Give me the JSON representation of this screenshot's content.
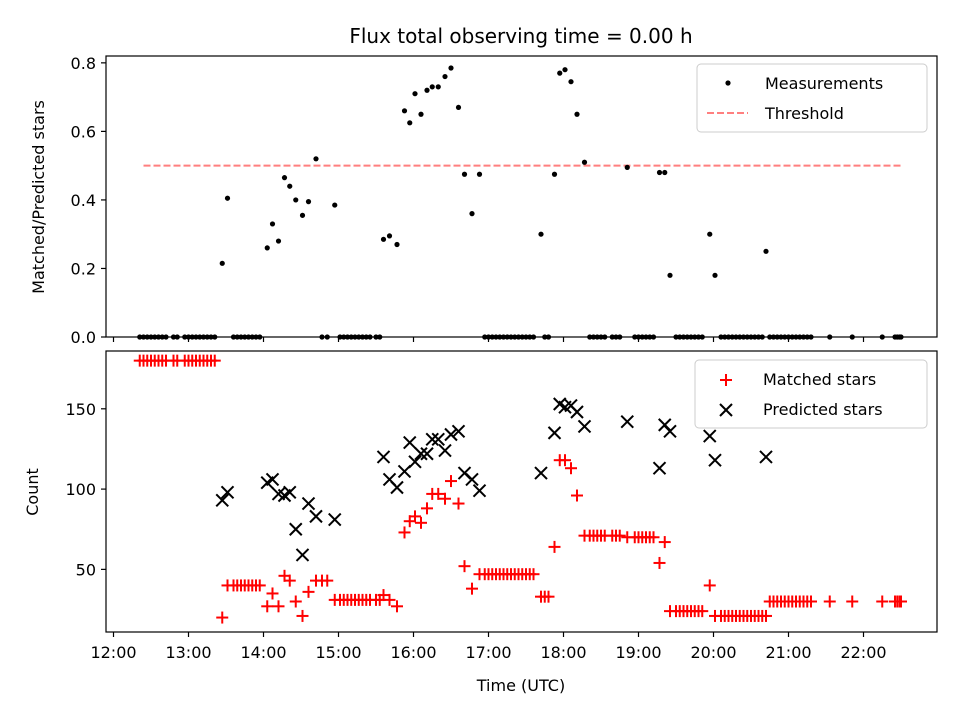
{
  "title": "Flux total observing time = 0.00 h",
  "colors": {
    "measurements": "#000000",
    "threshold": "#ff7f7f",
    "matched": "#ff0000",
    "predicted": "#000000"
  },
  "chart_data": [
    {
      "type": "scatter",
      "ylabel": "Matched/Predicted stars",
      "x_unit": "hours UTC",
      "xlim": [
        11.9,
        22.98
      ],
      "ylim": [
        0,
        0.82
      ],
      "yticks": [
        0.0,
        0.2,
        0.4,
        0.6,
        0.8
      ],
      "ytick_labels": [
        "0.0",
        "0.2",
        "0.4",
        "0.6",
        "0.8"
      ],
      "legend": [
        "Measurements",
        "Threshold"
      ],
      "legend_position": "top-right",
      "threshold": {
        "value": 0.5,
        "x_range": [
          12.4,
          22.5
        ]
      },
      "measurements": [
        [
          12.35,
          0
        ],
        [
          12.4,
          0
        ],
        [
          12.45,
          0
        ],
        [
          12.5,
          0
        ],
        [
          12.55,
          0
        ],
        [
          12.6,
          0
        ],
        [
          12.65,
          0
        ],
        [
          12.7,
          0
        ],
        [
          12.8,
          0
        ],
        [
          12.85,
          0
        ],
        [
          12.95,
          0
        ],
        [
          13.0,
          0
        ],
        [
          13.05,
          0
        ],
        [
          13.1,
          0
        ],
        [
          13.15,
          0
        ],
        [
          13.2,
          0
        ],
        [
          13.25,
          0
        ],
        [
          13.3,
          0
        ],
        [
          13.35,
          0
        ],
        [
          13.45,
          0.215
        ],
        [
          13.52,
          0.405
        ],
        [
          13.6,
          0
        ],
        [
          13.65,
          0
        ],
        [
          13.7,
          0
        ],
        [
          13.75,
          0
        ],
        [
          13.8,
          0
        ],
        [
          13.85,
          0
        ],
        [
          13.9,
          0
        ],
        [
          13.95,
          0
        ],
        [
          14.05,
          0.26
        ],
        [
          14.12,
          0.33
        ],
        [
          14.2,
          0.28
        ],
        [
          14.28,
          0.465
        ],
        [
          14.35,
          0.44
        ],
        [
          14.43,
          0.4
        ],
        [
          14.52,
          0.355
        ],
        [
          14.6,
          0.395
        ],
        [
          14.7,
          0.52
        ],
        [
          14.78,
          0
        ],
        [
          14.85,
          0
        ],
        [
          14.95,
          0.385
        ],
        [
          15.02,
          0
        ],
        [
          15.07,
          0
        ],
        [
          15.12,
          0
        ],
        [
          15.17,
          0
        ],
        [
          15.22,
          0
        ],
        [
          15.27,
          0
        ],
        [
          15.32,
          0
        ],
        [
          15.37,
          0
        ],
        [
          15.42,
          0
        ],
        [
          15.5,
          0
        ],
        [
          15.55,
          0
        ],
        [
          15.6,
          0.285
        ],
        [
          15.68,
          0.295
        ],
        [
          15.78,
          0.27
        ],
        [
          15.88,
          0.66
        ],
        [
          15.95,
          0.625
        ],
        [
          16.02,
          0.71
        ],
        [
          16.1,
          0.65
        ],
        [
          16.18,
          0.72
        ],
        [
          16.25,
          0.73
        ],
        [
          16.33,
          0.73
        ],
        [
          16.42,
          0.76
        ],
        [
          16.5,
          0.785
        ],
        [
          16.6,
          0.67
        ],
        [
          16.68,
          0.475
        ],
        [
          16.78,
          0.36
        ],
        [
          16.88,
          0.475
        ],
        [
          16.95,
          0
        ],
        [
          17.0,
          0
        ],
        [
          17.05,
          0
        ],
        [
          17.1,
          0
        ],
        [
          17.15,
          0
        ],
        [
          17.2,
          0
        ],
        [
          17.25,
          0
        ],
        [
          17.3,
          0
        ],
        [
          17.35,
          0
        ],
        [
          17.4,
          0
        ],
        [
          17.45,
          0
        ],
        [
          17.5,
          0
        ],
        [
          17.55,
          0
        ],
        [
          17.6,
          0
        ],
        [
          17.7,
          0.3
        ],
        [
          17.75,
          0
        ],
        [
          17.8,
          0
        ],
        [
          17.88,
          0.475
        ],
        [
          17.95,
          0.77
        ],
        [
          18.02,
          0.78
        ],
        [
          18.1,
          0.745
        ],
        [
          18.18,
          0.65
        ],
        [
          18.28,
          0.51
        ],
        [
          18.35,
          0
        ],
        [
          18.4,
          0
        ],
        [
          18.45,
          0
        ],
        [
          18.5,
          0
        ],
        [
          18.55,
          0
        ],
        [
          18.65,
          0
        ],
        [
          18.7,
          0
        ],
        [
          18.75,
          0
        ],
        [
          18.85,
          0.495
        ],
        [
          18.95,
          0
        ],
        [
          19.0,
          0
        ],
        [
          19.05,
          0
        ],
        [
          19.1,
          0
        ],
        [
          19.15,
          0
        ],
        [
          19.2,
          0
        ],
        [
          19.28,
          0.48
        ],
        [
          19.35,
          0.48
        ],
        [
          19.42,
          0.18
        ],
        [
          19.5,
          0
        ],
        [
          19.55,
          0
        ],
        [
          19.6,
          0
        ],
        [
          19.65,
          0
        ],
        [
          19.7,
          0
        ],
        [
          19.75,
          0
        ],
        [
          19.8,
          0
        ],
        [
          19.85,
          0
        ],
        [
          19.95,
          0.3
        ],
        [
          20.02,
          0.18
        ],
        [
          20.1,
          0
        ],
        [
          20.15,
          0
        ],
        [
          20.2,
          0
        ],
        [
          20.25,
          0
        ],
        [
          20.3,
          0
        ],
        [
          20.35,
          0
        ],
        [
          20.4,
          0
        ],
        [
          20.45,
          0
        ],
        [
          20.5,
          0
        ],
        [
          20.55,
          0
        ],
        [
          20.6,
          0
        ],
        [
          20.65,
          0
        ],
        [
          20.7,
          0.25
        ],
        [
          20.75,
          0
        ],
        [
          20.8,
          0
        ],
        [
          20.85,
          0
        ],
        [
          20.9,
          0
        ],
        [
          20.95,
          0
        ],
        [
          21.0,
          0
        ],
        [
          21.05,
          0
        ],
        [
          21.1,
          0
        ],
        [
          21.15,
          0
        ],
        [
          21.2,
          0
        ],
        [
          21.25,
          0
        ],
        [
          21.3,
          0
        ],
        [
          21.55,
          0
        ],
        [
          21.85,
          0
        ],
        [
          22.25,
          0
        ],
        [
          22.42,
          0
        ],
        [
          22.45,
          0
        ],
        [
          22.48,
          0
        ],
        [
          22.5,
          0
        ]
      ]
    },
    {
      "type": "scatter",
      "ylabel": "Count",
      "xlabel": "Time (UTC)",
      "x_unit": "hours UTC",
      "xlim": [
        11.9,
        22.98
      ],
      "ylim": [
        11,
        186
      ],
      "xticks": [
        12,
        13,
        14,
        15,
        16,
        17,
        18,
        19,
        20,
        21,
        22
      ],
      "xtick_labels": [
        "12:00",
        "13:00",
        "14:00",
        "15:00",
        "16:00",
        "17:00",
        "18:00",
        "19:00",
        "20:00",
        "21:00",
        "22:00"
      ],
      "yticks": [
        50,
        100,
        150
      ],
      "ytick_labels": [
        "50",
        "100",
        "150"
      ],
      "legend": [
        "Matched stars",
        "Predicted stars"
      ],
      "legend_position": "top-right",
      "matched": [
        [
          12.35,
          180
        ],
        [
          12.4,
          180
        ],
        [
          12.45,
          180
        ],
        [
          12.5,
          180
        ],
        [
          12.55,
          180
        ],
        [
          12.6,
          180
        ],
        [
          12.65,
          180
        ],
        [
          12.7,
          180
        ],
        [
          12.8,
          180
        ],
        [
          12.85,
          180
        ],
        [
          12.95,
          180
        ],
        [
          13.0,
          180
        ],
        [
          13.05,
          180
        ],
        [
          13.1,
          180
        ],
        [
          13.15,
          180
        ],
        [
          13.2,
          180
        ],
        [
          13.25,
          180
        ],
        [
          13.3,
          180
        ],
        [
          13.35,
          180
        ],
        [
          13.45,
          20
        ],
        [
          13.52,
          40
        ],
        [
          13.6,
          40
        ],
        [
          13.65,
          40
        ],
        [
          13.7,
          40
        ],
        [
          13.75,
          40
        ],
        [
          13.8,
          40
        ],
        [
          13.85,
          40
        ],
        [
          13.9,
          40
        ],
        [
          13.95,
          40
        ],
        [
          14.05,
          27
        ],
        [
          14.12,
          35
        ],
        [
          14.2,
          27
        ],
        [
          14.28,
          46
        ],
        [
          14.35,
          43
        ],
        [
          14.43,
          30
        ],
        [
          14.52,
          21
        ],
        [
          14.6,
          36
        ],
        [
          14.7,
          43
        ],
        [
          14.78,
          43
        ],
        [
          14.85,
          43
        ],
        [
          14.95,
          31
        ],
        [
          15.02,
          31
        ],
        [
          15.07,
          31
        ],
        [
          15.12,
          31
        ],
        [
          15.17,
          31
        ],
        [
          15.22,
          31
        ],
        [
          15.27,
          31
        ],
        [
          15.32,
          31
        ],
        [
          15.37,
          31
        ],
        [
          15.42,
          31
        ],
        [
          15.5,
          31
        ],
        [
          15.55,
          31
        ],
        [
          15.6,
          34
        ],
        [
          15.68,
          31
        ],
        [
          15.78,
          27
        ],
        [
          15.88,
          73
        ],
        [
          15.95,
          80
        ],
        [
          16.02,
          83
        ],
        [
          16.1,
          79
        ],
        [
          16.18,
          88
        ],
        [
          16.25,
          97
        ],
        [
          16.33,
          97
        ],
        [
          16.42,
          94
        ],
        [
          16.5,
          105
        ],
        [
          16.6,
          91
        ],
        [
          16.68,
          52
        ],
        [
          16.78,
          38
        ],
        [
          16.88,
          47
        ],
        [
          16.95,
          47
        ],
        [
          17.0,
          47
        ],
        [
          17.05,
          47
        ],
        [
          17.1,
          47
        ],
        [
          17.15,
          47
        ],
        [
          17.2,
          47
        ],
        [
          17.25,
          47
        ],
        [
          17.3,
          47
        ],
        [
          17.35,
          47
        ],
        [
          17.4,
          47
        ],
        [
          17.45,
          47
        ],
        [
          17.5,
          47
        ],
        [
          17.55,
          47
        ],
        [
          17.6,
          47
        ],
        [
          17.7,
          33
        ],
        [
          17.75,
          33
        ],
        [
          17.8,
          33
        ],
        [
          17.88,
          64
        ],
        [
          17.95,
          118
        ],
        [
          18.02,
          118
        ],
        [
          18.1,
          113
        ],
        [
          18.18,
          96
        ],
        [
          18.28,
          71
        ],
        [
          18.35,
          71
        ],
        [
          18.4,
          71
        ],
        [
          18.45,
          71
        ],
        [
          18.5,
          71
        ],
        [
          18.55,
          71
        ],
        [
          18.65,
          71
        ],
        [
          18.7,
          71
        ],
        [
          18.75,
          71
        ],
        [
          18.85,
          70
        ],
        [
          18.95,
          70
        ],
        [
          19.0,
          70
        ],
        [
          19.05,
          70
        ],
        [
          19.1,
          70
        ],
        [
          19.15,
          70
        ],
        [
          19.2,
          70
        ],
        [
          19.28,
          54
        ],
        [
          19.35,
          67
        ],
        [
          19.42,
          24
        ],
        [
          19.5,
          24
        ],
        [
          19.55,
          24
        ],
        [
          19.6,
          24
        ],
        [
          19.65,
          24
        ],
        [
          19.7,
          24
        ],
        [
          19.75,
          24
        ],
        [
          19.8,
          24
        ],
        [
          19.85,
          24
        ],
        [
          19.95,
          40
        ],
        [
          20.02,
          21
        ],
        [
          20.1,
          21
        ],
        [
          20.15,
          21
        ],
        [
          20.2,
          21
        ],
        [
          20.25,
          21
        ],
        [
          20.3,
          21
        ],
        [
          20.35,
          21
        ],
        [
          20.4,
          21
        ],
        [
          20.45,
          21
        ],
        [
          20.5,
          21
        ],
        [
          20.55,
          21
        ],
        [
          20.6,
          21
        ],
        [
          20.65,
          21
        ],
        [
          20.7,
          21
        ],
        [
          20.75,
          30
        ],
        [
          20.8,
          30
        ],
        [
          20.85,
          30
        ],
        [
          20.9,
          30
        ],
        [
          20.95,
          30
        ],
        [
          21.0,
          30
        ],
        [
          21.05,
          30
        ],
        [
          21.1,
          30
        ],
        [
          21.15,
          30
        ],
        [
          21.2,
          30
        ],
        [
          21.25,
          30
        ],
        [
          21.3,
          30
        ],
        [
          21.55,
          30
        ],
        [
          21.85,
          30
        ],
        [
          22.25,
          30
        ],
        [
          22.42,
          30
        ],
        [
          22.45,
          30
        ],
        [
          22.48,
          30
        ],
        [
          22.5,
          30
        ]
      ],
      "predicted": [
        [
          13.45,
          93
        ],
        [
          13.52,
          98
        ],
        [
          14.05,
          104
        ],
        [
          14.12,
          106
        ],
        [
          14.2,
          97
        ],
        [
          14.28,
          96
        ],
        [
          14.35,
          98
        ],
        [
          14.43,
          75
        ],
        [
          14.52,
          59
        ],
        [
          14.6,
          91
        ],
        [
          14.7,
          83
        ],
        [
          14.95,
          81
        ],
        [
          15.6,
          120
        ],
        [
          15.68,
          106
        ],
        [
          15.78,
          101
        ],
        [
          15.88,
          111
        ],
        [
          15.95,
          129
        ],
        [
          16.02,
          117
        ],
        [
          16.1,
          122
        ],
        [
          16.18,
          122
        ],
        [
          16.25,
          131
        ],
        [
          16.33,
          131
        ],
        [
          16.42,
          124
        ],
        [
          16.5,
          134
        ],
        [
          16.6,
          136
        ],
        [
          16.68,
          110
        ],
        [
          16.78,
          106
        ],
        [
          16.88,
          99
        ],
        [
          17.7,
          110
        ],
        [
          17.88,
          135
        ],
        [
          17.95,
          153
        ],
        [
          18.02,
          151
        ],
        [
          18.1,
          152
        ],
        [
          18.18,
          148
        ],
        [
          18.28,
          139
        ],
        [
          18.85,
          142
        ],
        [
          19.28,
          113
        ],
        [
          19.35,
          140
        ],
        [
          19.42,
          136
        ],
        [
          19.95,
          133
        ],
        [
          20.02,
          118
        ],
        [
          20.7,
          120
        ]
      ]
    }
  ]
}
